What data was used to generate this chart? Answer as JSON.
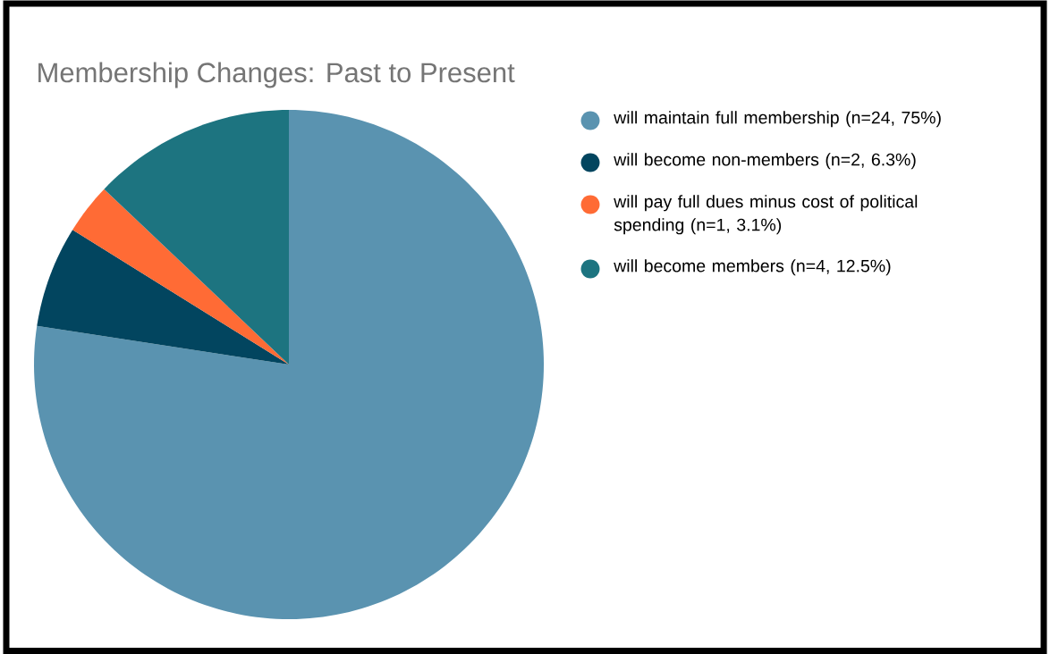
{
  "chart_data": {
    "type": "pie",
    "title": "Membership Changes: Past to Present",
    "categories": [
      "will maintain full membership (n=24, 75%)",
      "will become non-members (n=2, 6.3%)",
      "will pay full dues minus cost of political spending (n=1, 3.1%)",
      "will become members (n=4, 12.5%)"
    ],
    "values": [
      24,
      2,
      1,
      4
    ],
    "colors": [
      "#5a93b0",
      "#02455f",
      "#ff6b35",
      "#1d7480"
    ],
    "legend": "right"
  }
}
